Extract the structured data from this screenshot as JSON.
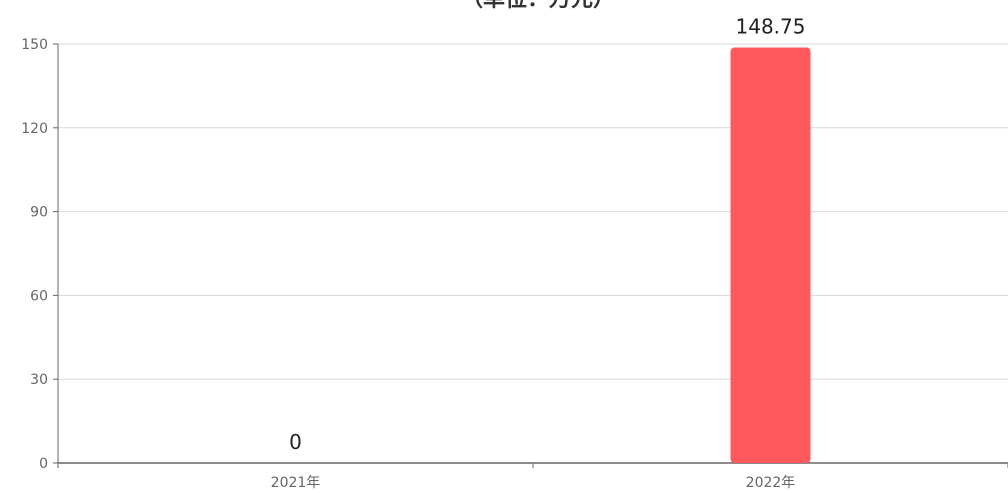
{
  "chart_data": {
    "type": "bar",
    "title": "（单位：万元）",
    "categories": [
      "2021年",
      "2022年"
    ],
    "values": [
      0,
      148.75
    ],
    "data_labels": [
      "0",
      "148.75"
    ],
    "xlabel": "",
    "ylabel": "",
    "ylim": [
      0,
      150
    ],
    "yticks": [
      0,
      30,
      60,
      90,
      120,
      150
    ],
    "grid": true,
    "legend": "none",
    "bar_color": "#ff595e",
    "grid_color": "#d9d9d9",
    "axis_color": "#666666"
  }
}
